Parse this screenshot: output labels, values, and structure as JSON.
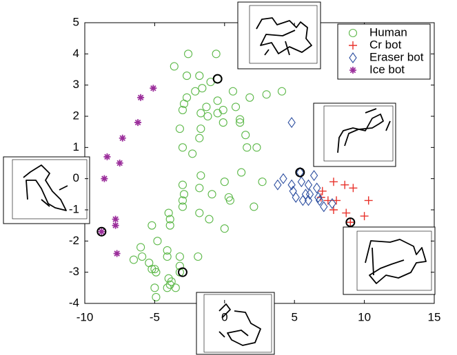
{
  "chart_data": {
    "type": "scatter",
    "xlim": [
      -10,
      15
    ],
    "ylim": [
      -4,
      5
    ],
    "xticks": [
      -10,
      -5,
      0,
      5,
      10,
      15
    ],
    "yticks": [
      -4,
      -3,
      -2,
      -1,
      0,
      1,
      2,
      3,
      4,
      5
    ],
    "legend": "upper right",
    "series": [
      {
        "name": "Human",
        "color": "#5cb848",
        "marker": "circle",
        "x": [
          -2.6,
          -0.6,
          -3.6,
          -2.7,
          -0.5,
          -1.0,
          -1.6,
          -1.8,
          -2.1,
          -2.7,
          0.6,
          1.8,
          3.0,
          4.1,
          -0.5,
          -1.3,
          0.8,
          -0.1,
          -0.5,
          -1.2,
          -1.7,
          -0.1,
          1.1,
          1.1,
          -2.9,
          -3.0,
          -3.2,
          -1.7,
          1.5,
          1.6,
          2.3,
          -1.8,
          -3.0,
          -2.3,
          1.2,
          0.0,
          2.7,
          -1.7,
          -1.8,
          -0.9,
          0.3,
          0.4,
          -3.0,
          -2.9,
          -3.0,
          -1.8,
          -3.0,
          -4.0,
          -3.9,
          -3.9,
          -5.2,
          -1.1,
          0.0,
          2.1,
          -4.8,
          -6.0,
          -5.9,
          -6.5,
          -4.1,
          -4.1,
          -3.2,
          -5.4,
          -5.0,
          -4.9,
          -5.2,
          -3.2,
          -1.9,
          -4.0,
          -3.8,
          -3.5,
          -5.0,
          -4.9,
          -3.2,
          -3.9,
          -4.1
        ],
        "y": [
          4.0,
          4.0,
          3.6,
          3.3,
          3.2,
          3.1,
          2.9,
          3.3,
          2.8,
          2.6,
          2.8,
          2.6,
          2.7,
          2.8,
          2.5,
          2.3,
          2.3,
          2.2,
          2.1,
          2.0,
          2.1,
          1.8,
          1.9,
          1.8,
          2.4,
          2.2,
          1.6,
          1.6,
          1.4,
          1.0,
          1.0,
          1.3,
          1.0,
          0.8,
          0.2,
          -0.1,
          -0.1,
          0.1,
          -0.3,
          -0.5,
          -0.6,
          -0.7,
          -0.2,
          -0.5,
          -0.7,
          -1.1,
          -0.9,
          -1.1,
          -1.3,
          -1.5,
          -1.5,
          -1.3,
          -1.6,
          -0.9,
          -2.0,
          -2.2,
          -2.5,
          -2.6,
          -2.3,
          -2.5,
          -2.5,
          -2.7,
          -2.9,
          -3.0,
          -2.9,
          -2.8,
          -2.5,
          -3.2,
          -3.3,
          -3.5,
          -3.5,
          -3.8,
          -3.0,
          -3.4,
          -3.5
        ]
      },
      {
        "name": "Cr bot",
        "color": "#e8312a",
        "marker": "plus",
        "x": [
          7.8,
          8.6,
          9.2,
          7.0,
          6.9,
          7.4,
          8.0,
          10.3,
          7.8,
          8.7,
          9.0,
          10.0
        ],
        "y": [
          -0.1,
          -0.2,
          -0.3,
          -0.4,
          -0.6,
          -0.7,
          -0.7,
          -0.7,
          -1.0,
          -1.1,
          -1.4,
          -1.2
        ]
      },
      {
        "name": "Eraser bot",
        "color": "#2d4fa0",
        "marker": "diamond",
        "x": [
          4.8,
          5.4,
          3.8,
          4.2,
          4.8,
          5.5,
          6.0,
          6.4,
          5.8,
          4.9,
          5.1,
          6.1,
          6.7,
          6.8,
          7.1,
          7.7,
          6.0,
          5.6,
          6.6
        ],
        "y": [
          1.8,
          0.2,
          -0.2,
          0.0,
          -0.2,
          -0.1,
          -0.2,
          0.1,
          -0.5,
          -0.4,
          -0.6,
          -0.5,
          -0.6,
          -0.7,
          -0.9,
          -0.8,
          -0.7,
          -0.7,
          -0.3
        ]
      },
      {
        "name": "Ice bot",
        "color": "#9b2e9b",
        "marker": "star",
        "x": [
          -5.1,
          -6.0,
          -6.2,
          -7.3,
          -8.4,
          -7.5,
          -8.6,
          -7.8,
          -7.8,
          -8.8,
          -7.7
        ],
        "y": [
          2.9,
          2.6,
          1.8,
          1.3,
          0.7,
          0.5,
          0.0,
          -1.3,
          -1.5,
          -1.7,
          -2.4
        ]
      }
    ],
    "highlighted": {
      "color": "#000",
      "x": [
        -0.5,
        5.4,
        9.0,
        -3.0,
        -8.8
      ],
      "y": [
        3.2,
        0.2,
        -1.4,
        -3.0,
        -1.7
      ]
    }
  }
}
